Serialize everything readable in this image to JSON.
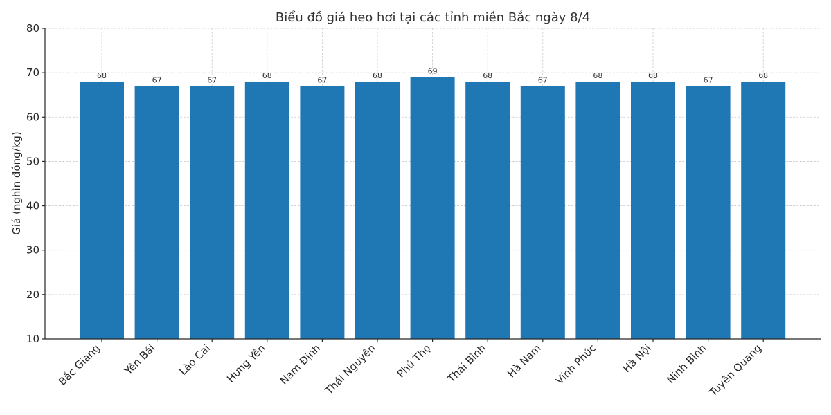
{
  "chart_data": {
    "type": "bar",
    "title": "Biểu đồ giá heo hơi tại các tỉnh miền Bắc ngày 8/4",
    "xlabel": "",
    "ylabel": "Giá (nghìn đồng/kg)",
    "ylim": [
      10,
      80
    ],
    "yticks": [
      10,
      20,
      30,
      40,
      50,
      60,
      70,
      80
    ],
    "grid": true,
    "legend": null,
    "bar_color": "#1f77b4",
    "categories": [
      "Bắc Giang",
      "Yên Bái",
      "Lào Cai",
      "Hưng Yên",
      "Nam Định",
      "Thái Nguyên",
      "Phú Thọ",
      "Thái Bình",
      "Hà Nam",
      "Vĩnh Phúc",
      "Hà Nội",
      "Ninh Bình",
      "Tuyên Quang"
    ],
    "values": [
      68,
      67,
      67,
      68,
      67,
      68,
      69,
      68,
      67,
      68,
      68,
      67,
      68
    ],
    "data_labels": [
      "68",
      "67",
      "67",
      "68",
      "67",
      "68",
      "69",
      "68",
      "67",
      "68",
      "68",
      "67",
      "68"
    ]
  }
}
